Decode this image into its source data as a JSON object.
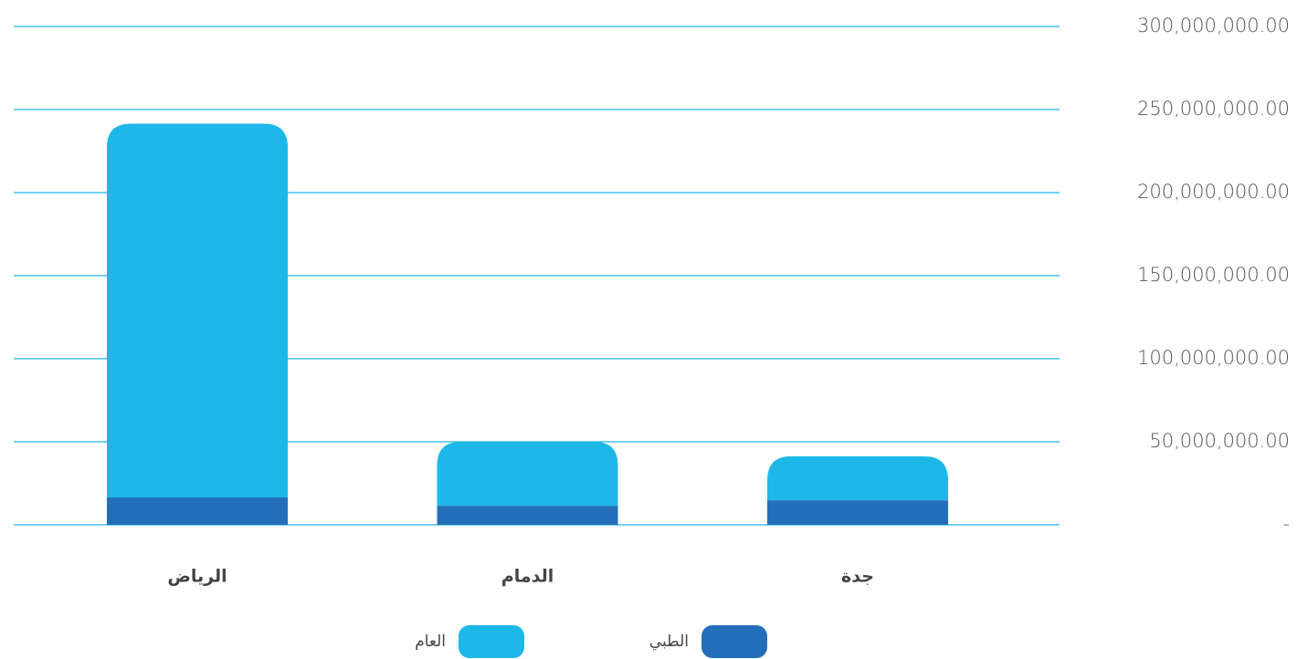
{
  "chart_data": {
    "type": "stacked_bar",
    "categories": [
      "الرياض",
      "الدمام",
      "جدة"
    ],
    "series": [
      {
        "name": "الطبي",
        "color": "#236eb8",
        "values": [
          16500000,
          11500000,
          14800000
        ]
      },
      {
        "name": "العام",
        "color": "#1eb8e8",
        "values": [
          225000000,
          38500000,
          26400000
        ]
      }
    ],
    "ylim": [
      0,
      300000000
    ],
    "yticks": [
      {
        "value": 0,
        "label": "-"
      },
      {
        "value": 50000000,
        "label": "50,000,000.00"
      },
      {
        "value": 100000000,
        "label": "100,000,000.00"
      },
      {
        "value": 150000000,
        "label": "150,000,000.00"
      },
      {
        "value": 200000000,
        "label": "200,000,000.00"
      },
      {
        "value": 250000000,
        "label": "250,000,000.00"
      },
      {
        "value": 300000000,
        "label": "300,000,000.00"
      }
    ],
    "grid": true
  }
}
